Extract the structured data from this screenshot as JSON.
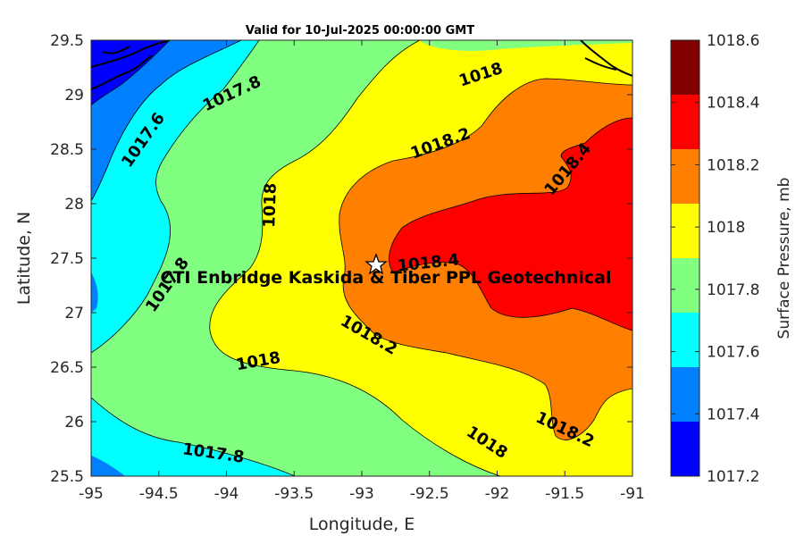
{
  "title": "Valid for 10-Jul-2025 00:00:00 GMT",
  "x_axis": {
    "label": "Longitude, E",
    "ticks": [
      "-95",
      "-94.5",
      "-94",
      "-93.5",
      "-93",
      "-92.5",
      "-92",
      "-91.5",
      "-91"
    ]
  },
  "y_axis": {
    "label": "Latitude, N",
    "ticks": [
      "29.5",
      "29",
      "28.5",
      "28",
      "27.5",
      "27",
      "26.5",
      "26",
      "25.5"
    ]
  },
  "colorbar": {
    "label": "Surface Pressure, mb",
    "ticks": [
      "1018.6",
      "1018.4",
      "1018.2",
      "1018",
      "1017.8",
      "1017.6",
      "1017.4",
      "1017.2"
    ],
    "colors": [
      "#800000",
      "#ff0000",
      "#ff8000",
      "#ffff00",
      "#80ff80",
      "#00ffff",
      "#0080ff",
      "#0000ff"
    ]
  },
  "contour_labels": [
    "1017.6",
    "1017.8",
    "1018",
    "1018.2",
    "1018",
    "1018.4",
    "1017.8",
    "1018.4",
    "1018.2",
    "1018",
    "1018.2",
    "1018",
    "1017.8"
  ],
  "site": {
    "marker": "star-icon",
    "label": "CTI Enbridge  Kaskida & Tiber PPL Geotechnical"
  }
}
